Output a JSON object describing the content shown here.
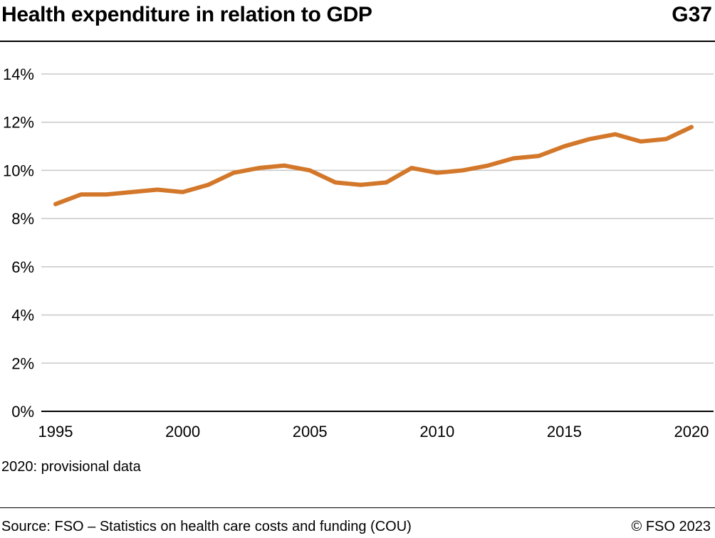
{
  "header": {
    "title": "Health expenditure in relation to GDP",
    "code": "G37"
  },
  "footer": {
    "note": "2020: provisional data",
    "source": "Source: FSO – Statistics on health care costs and funding (COU)",
    "copyright": "© FSO 2023"
  },
  "colors": {
    "line": "#d3782a",
    "grid": "#c8c8c8",
    "axis": "#000000"
  },
  "chart_data": {
    "type": "line",
    "title": "Health expenditure in relation to GDP",
    "xlabel": "",
    "ylabel": "",
    "x": [
      1995,
      1996,
      1997,
      1998,
      1999,
      2000,
      2001,
      2002,
      2003,
      2004,
      2005,
      2006,
      2007,
      2008,
      2009,
      2010,
      2011,
      2012,
      2013,
      2014,
      2015,
      2016,
      2017,
      2018,
      2019,
      2020
    ],
    "series": [
      {
        "name": "Health expenditure in relation to GDP",
        "values": [
          8.6,
          9.0,
          9.0,
          9.1,
          9.2,
          9.1,
          9.4,
          9.9,
          10.1,
          10.2,
          10.0,
          9.5,
          9.4,
          9.5,
          10.1,
          9.9,
          10.0,
          10.2,
          10.5,
          10.6,
          11.0,
          11.3,
          11.5,
          11.2,
          11.3,
          11.8
        ]
      }
    ],
    "ylim": [
      0,
      14
    ],
    "xlim": [
      1995,
      2020
    ],
    "y_ticks": [
      0,
      2,
      4,
      6,
      8,
      10,
      12,
      14
    ],
    "y_tick_labels": [
      "0%",
      "2%",
      "4%",
      "6%",
      "8%",
      "10%",
      "12%",
      "14%"
    ],
    "x_ticks": [
      1995,
      2000,
      2005,
      2010,
      2015,
      2020
    ],
    "x_tick_labels": [
      "1995",
      "2000",
      "2005",
      "2010",
      "2015",
      "2020"
    ],
    "grid": true,
    "legend": "none"
  }
}
